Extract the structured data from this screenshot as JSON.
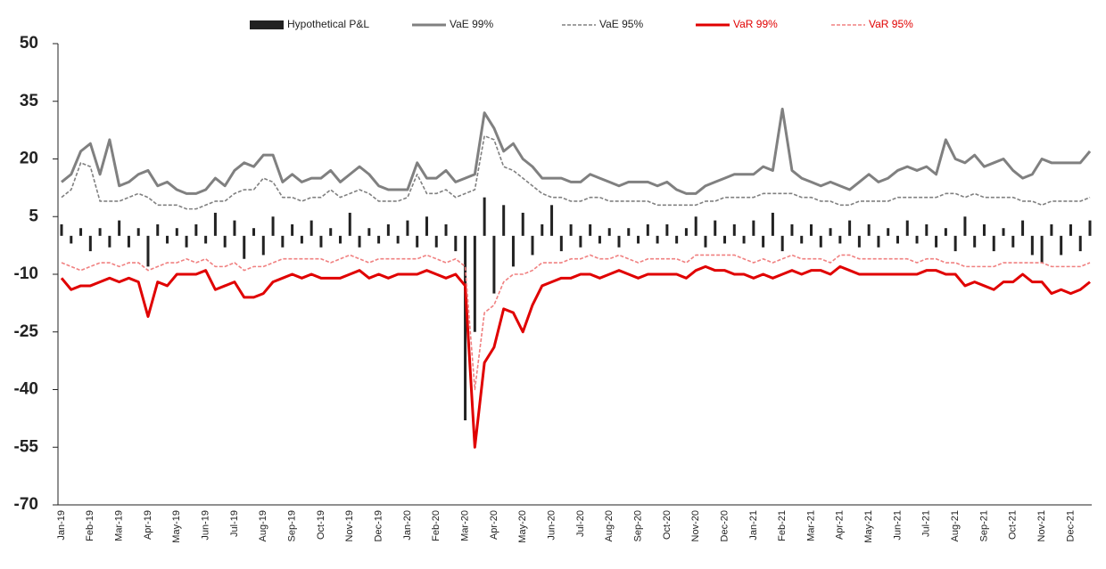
{
  "chart_data": {
    "type": "line",
    "categories": [
      "Jan-19",
      null,
      null,
      "Feb-19",
      null,
      null,
      "Mar-19",
      null,
      null,
      "Apr-19",
      null,
      null,
      "May-19",
      null,
      null,
      "Jun-19",
      null,
      null,
      "Jul-19",
      null,
      null,
      "Aug-19",
      null,
      null,
      "Sep-19",
      null,
      null,
      "Oct-19",
      null,
      null,
      "Nov-19",
      null,
      null,
      "Dec-19",
      null,
      null,
      "Jan-20",
      null,
      null,
      "Feb-20",
      null,
      null,
      "Mar-20",
      null,
      null,
      "Apr-20",
      null,
      null,
      "May-20",
      null,
      null,
      "Jun-20",
      null,
      null,
      "Jul-20",
      null,
      null,
      "Aug-20",
      null,
      null,
      "Sep-20",
      null,
      null,
      "Oct-20",
      null,
      null,
      "Nov-20",
      null,
      null,
      "Dec-20",
      null,
      null,
      "Jan-21",
      null,
      null,
      "Feb-21",
      null,
      null,
      "Mar-21",
      null,
      null,
      "Apr-21",
      null,
      null,
      "May-21",
      null,
      null,
      "Jun-21",
      null,
      null,
      "Jul-21",
      null,
      null,
      "Aug-21",
      null,
      null,
      "Sep-21",
      null,
      null,
      "Oct-21",
      null,
      null,
      "Nov-21",
      null,
      null,
      "Dec-21",
      null,
      null
    ],
    "series": [
      {
        "name": "Hypothetical P&L",
        "type": "bar",
        "color": "#222222",
        "text_color": "#222222",
        "values": [
          3,
          -2,
          2,
          -4,
          2,
          -3,
          4,
          -3,
          2,
          -8,
          3,
          -2,
          2,
          -3,
          3,
          -2,
          6,
          -3,
          4,
          -6,
          2,
          -5,
          5,
          -3,
          3,
          -2,
          4,
          -3,
          2,
          -2,
          6,
          -3,
          2,
          -2,
          3,
          -2,
          4,
          -3,
          5,
          -3,
          3,
          -4,
          -48,
          -25,
          10,
          -15,
          8,
          -8,
          6,
          -5,
          3,
          8,
          -4,
          3,
          -3,
          3,
          -2,
          2,
          -3,
          2,
          -2,
          3,
          -2,
          3,
          -2,
          2,
          5,
          -3,
          4,
          -2,
          3,
          -2,
          4,
          -3,
          6,
          -4,
          3,
          -2,
          3,
          -3,
          2,
          -2,
          4,
          -3,
          3,
          -3,
          2,
          -2,
          4,
          -2,
          3,
          -3,
          2,
          -4,
          5,
          -3,
          3,
          -4,
          2,
          -3,
          4,
          -5,
          -7,
          3,
          -5,
          3,
          -4,
          4
        ]
      },
      {
        "name": "VaE 99%",
        "type": "line",
        "color": "#808080",
        "text_color": "#222222",
        "dashed": false,
        "line_width": 3,
        "values": [
          14,
          16,
          22,
          24,
          16,
          25,
          13,
          14,
          16,
          17,
          13,
          14,
          12,
          11,
          11,
          12,
          15,
          13,
          17,
          19,
          18,
          21,
          21,
          14,
          16,
          14,
          15,
          15,
          17,
          14,
          16,
          18,
          16,
          13,
          12,
          12,
          12,
          19,
          15,
          15,
          17,
          14,
          15,
          16,
          32,
          28,
          22,
          24,
          20,
          18,
          15,
          15,
          15,
          14,
          14,
          16,
          15,
          14,
          13,
          14,
          14,
          14,
          13,
          14,
          12,
          11,
          11,
          13,
          14,
          15,
          16,
          16,
          16,
          18,
          17,
          33,
          17,
          15,
          14,
          13,
          14,
          13,
          12,
          14,
          16,
          14,
          15,
          17,
          18,
          17,
          18,
          16,
          25,
          20,
          19,
          21,
          18,
          19,
          20,
          17,
          15,
          16,
          20,
          19,
          19,
          19,
          19,
          22
        ]
      },
      {
        "name": "VaE 95%",
        "type": "line",
        "color": "#808080",
        "text_color": "#222222",
        "dashed": true,
        "line_width": 1.6,
        "values": [
          10,
          12,
          19,
          18,
          9,
          9,
          9,
          10,
          11,
          10,
          8,
          8,
          8,
          7,
          7,
          8,
          9,
          9,
          11,
          12,
          12,
          15,
          14,
          10,
          10,
          9,
          10,
          10,
          12,
          10,
          11,
          12,
          11,
          9,
          9,
          9,
          10,
          16,
          11,
          11,
          12,
          10,
          11,
          12,
          26,
          25,
          18,
          17,
          15,
          13,
          11,
          10,
          10,
          9,
          9,
          10,
          10,
          9,
          9,
          9,
          9,
          9,
          8,
          8,
          8,
          8,
          8,
          9,
          9,
          10,
          10,
          10,
          10,
          11,
          11,
          11,
          11,
          10,
          10,
          9,
          9,
          8,
          8,
          9,
          9,
          9,
          9,
          10,
          10,
          10,
          10,
          10,
          11,
          11,
          10,
          11,
          10,
          10,
          10,
          10,
          9,
          9,
          8,
          9,
          9,
          9,
          9,
          10
        ]
      },
      {
        "name": "VaR 99%",
        "type": "line",
        "color": "#e00000",
        "text_color": "#e00000",
        "dashed": false,
        "line_width": 3,
        "values": [
          -11,
          -14,
          -13,
          -13,
          -12,
          -11,
          -12,
          -11,
          -12,
          -21,
          -12,
          -13,
          -10,
          -10,
          -10,
          -9,
          -14,
          -13,
          -12,
          -16,
          -16,
          -15,
          -12,
          -11,
          -10,
          -11,
          -10,
          -11,
          -11,
          -11,
          -10,
          -9,
          -11,
          -10,
          -11,
          -10,
          -10,
          -10,
          -9,
          -10,
          -11,
          -10,
          -13,
          -55,
          -33,
          -29,
          -19,
          -20,
          -25,
          -18,
          -13,
          -12,
          -11,
          -11,
          -10,
          -10,
          -11,
          -10,
          -9,
          -10,
          -11,
          -10,
          -10,
          -10,
          -10,
          -11,
          -9,
          -8,
          -9,
          -9,
          -10,
          -10,
          -11,
          -10,
          -11,
          -10,
          -9,
          -10,
          -9,
          -9,
          -10,
          -8,
          -9,
          -10,
          -10,
          -10,
          -10,
          -10,
          -10,
          -10,
          -9,
          -9,
          -10,
          -10,
          -13,
          -12,
          -13,
          -14,
          -12,
          -12,
          -10,
          -12,
          -12,
          -15,
          -14,
          -15,
          -14,
          -12
        ]
      },
      {
        "name": "VaR 95%",
        "type": "line",
        "color": "#f08080",
        "text_color": "#e00000",
        "dashed": true,
        "line_width": 1.6,
        "values": [
          -7,
          -8,
          -9,
          -8,
          -7,
          -7,
          -8,
          -7,
          -7,
          -9,
          -8,
          -7,
          -7,
          -6,
          -7,
          -6,
          -8,
          -8,
          -7,
          -9,
          -8,
          -8,
          -7,
          -6,
          -6,
          -6,
          -6,
          -6,
          -7,
          -6,
          -5,
          -6,
          -7,
          -6,
          -6,
          -6,
          -6,
          -6,
          -5,
          -6,
          -7,
          -6,
          -8,
          -40,
          -20,
          -18,
          -12,
          -10,
          -10,
          -9,
          -7,
          -7,
          -7,
          -6,
          -6,
          -5,
          -6,
          -6,
          -5,
          -6,
          -7,
          -6,
          -6,
          -6,
          -6,
          -7,
          -5,
          -5,
          -5,
          -5,
          -5,
          -6,
          -7,
          -6,
          -7,
          -6,
          -5,
          -6,
          -6,
          -6,
          -7,
          -5,
          -5,
          -6,
          -6,
          -6,
          -6,
          -6,
          -6,
          -7,
          -6,
          -6,
          -7,
          -7,
          -8,
          -8,
          -8,
          -8,
          -7,
          -7,
          -7,
          -7,
          -7,
          -8,
          -8,
          -8,
          -8,
          -7
        ]
      }
    ],
    "ylim": [
      -70,
      50
    ],
    "yticks": [
      -70,
      -55,
      -40,
      -25,
      -10,
      5,
      20,
      35,
      50
    ],
    "legend": "top"
  }
}
